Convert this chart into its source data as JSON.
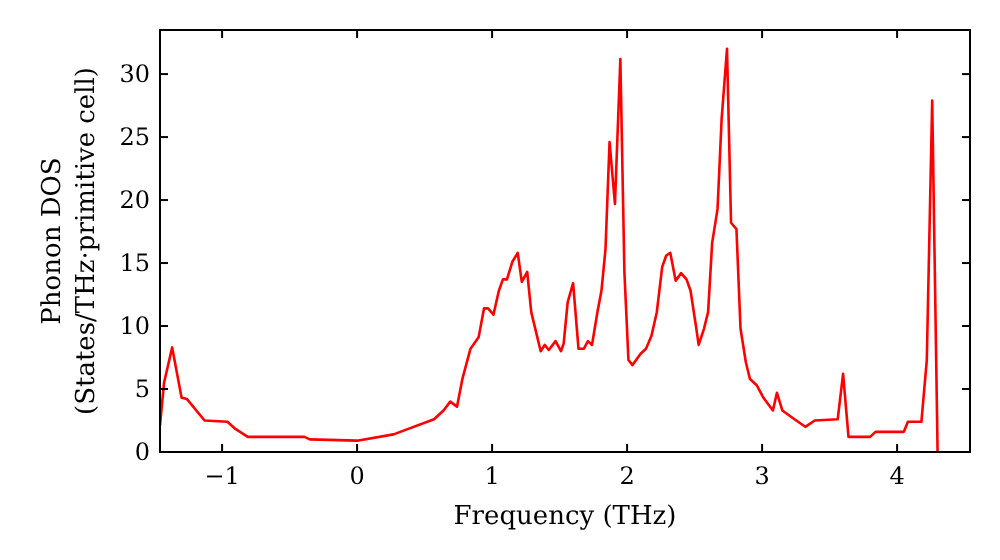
{
  "chart_data": {
    "type": "line",
    "xlabel": "Frequency (THz)",
    "ylabel": "Phonon DOS\n(States/THz·primitive cell)",
    "xlim": [
      -1.46,
      4.54
    ],
    "ylim": [
      0,
      33.5
    ],
    "xticks": [
      {
        "value": -1,
        "label": "−1"
      },
      0,
      1,
      2,
      3,
      4
    ],
    "yticks": [
      0,
      5,
      10,
      15,
      20,
      25,
      30
    ],
    "grid": false,
    "marker": "none",
    "line_style": "solid",
    "series": [
      {
        "color": "#ff0000",
        "x": [
          -1.46,
          -1.43,
          -1.37,
          -1.3,
          -1.26,
          -1.13,
          -0.96,
          -0.91,
          -0.81,
          -0.39,
          -0.35,
          0,
          0.27,
          0.57,
          0.64,
          0.69,
          0.74,
          0.78,
          0.84,
          0.9,
          0.94,
          0.97,
          1.01,
          1.05,
          1.08,
          1.11,
          1.15,
          1.19,
          1.22,
          1.26,
          1.29,
          1.36,
          1.39,
          1.42,
          1.47,
          1.51,
          1.53,
          1.56,
          1.6,
          1.64,
          1.68,
          1.71,
          1.74,
          1.78,
          1.81,
          1.84,
          1.87,
          1.91,
          1.95,
          1.98,
          2.01,
          2.04,
          2.1,
          2.14,
          2.18,
          2.22,
          2.26,
          2.29,
          2.32,
          2.36,
          2.4,
          2.44,
          2.47,
          2.51,
          2.53,
          2.57,
          2.6,
          2.63,
          2.67,
          2.7,
          2.74,
          2.77,
          2.81,
          2.84,
          2.88,
          2.91,
          2.96,
          3.01,
          3.08,
          3.11,
          3.15,
          3.24,
          3.32,
          3.39,
          3.56,
          3.6,
          3.64,
          3.8,
          3.84,
          4.05,
          4.08,
          4.18,
          4.22,
          4.26,
          4.3
        ],
        "values": [
          2.1,
          5.5,
          8.3,
          4.3,
          4.2,
          2.5,
          2.4,
          1.9,
          1.2,
          1.2,
          1.0,
          0.9,
          1.4,
          2.6,
          3.3,
          4.0,
          3.6,
          5.8,
          8.2,
          9.1,
          11.4,
          11.4,
          10.9,
          12.8,
          13.7,
          13.7,
          15.1,
          15.8,
          13.5,
          14.3,
          11.1,
          8.0,
          8.5,
          8.1,
          8.8,
          8.0,
          8.6,
          11.9,
          13.4,
          8.2,
          8.2,
          8.8,
          8.5,
          11.1,
          12.8,
          16.1,
          24.6,
          19.7,
          31.2,
          14.3,
          7.3,
          6.9,
          7.8,
          8.2,
          9.2,
          11.1,
          14.7,
          15.6,
          15.8,
          13.6,
          14.2,
          13.7,
          12.8,
          10.0,
          8.5,
          9.8,
          11.1,
          16.6,
          19.3,
          26.4,
          32.0,
          18.2,
          17.7,
          9.8,
          7.1,
          5.8,
          5.3,
          4.3,
          3.3,
          4.7,
          3.3,
          2.6,
          2.0,
          2.5,
          2.6,
          6.2,
          1.2,
          1.2,
          1.6,
          1.6,
          2.4,
          2.4,
          7.3,
          27.9,
          0.0
        ]
      }
    ]
  }
}
